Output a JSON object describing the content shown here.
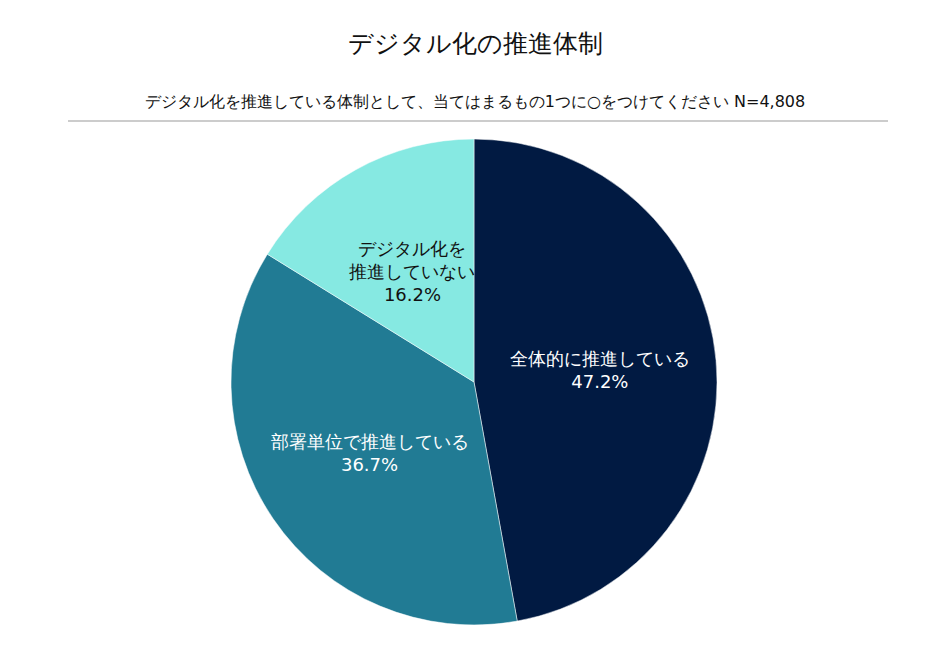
{
  "chart_data": {
    "type": "pie",
    "title": "デジタル化の推進体制",
    "subtitle": "デジタル化を推進している体制として、当てはまるもの1つに○をつけてください N=4,808",
    "categories": [
      "全体的に推進している",
      "部署単位で推進している",
      "デジタル化を\n推進していない"
    ],
    "values": [
      47.2,
      36.7,
      16.2
    ],
    "value_labels": [
      "47.2%",
      "36.7%",
      "16.2%"
    ],
    "colors": [
      "#011a42",
      "#217b94",
      "#86e9e2"
    ],
    "data_labels": true
  }
}
